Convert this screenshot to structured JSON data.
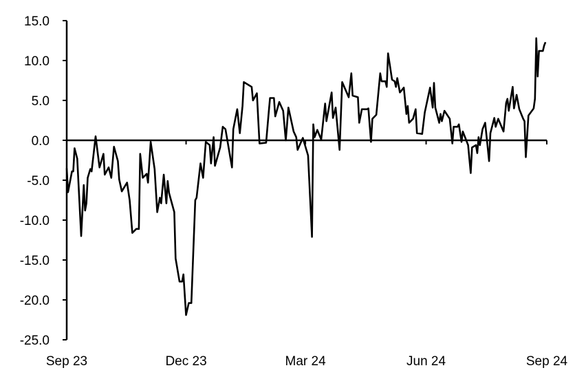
{
  "chart_data": {
    "type": "line",
    "title": "",
    "xlabel": "",
    "ylabel": "",
    "ylim": [
      -25,
      15
    ],
    "xlim": [
      "2023-09-01",
      "2024-09-01"
    ],
    "grid": false,
    "line_color": "#000000",
    "zero_line": true,
    "y_ticks": [
      15,
      10,
      5,
      0,
      -5,
      -10,
      -15,
      -20,
      -25
    ],
    "y_tick_labels": [
      "15.0",
      "10.0",
      "5.0",
      "0.0",
      "-5.0",
      "-10.0",
      "-15.0",
      "-20.0",
      "-25.0"
    ],
    "x_ticks": [
      "2023-09-01",
      "2023-12-01",
      "2024-03-01",
      "2024-06-01",
      "2024-09-01"
    ],
    "x_tick_labels": [
      "Sep 23",
      "Dec 23",
      "Mar 24",
      "Jun 24",
      "Sep 24"
    ],
    "series": [
      {
        "points": [
          [
            "2023-09-01",
            -3.5
          ],
          [
            "2023-09-02",
            -6.5
          ],
          [
            "2023-09-05",
            -3.9
          ],
          [
            "2023-09-06",
            -3.9
          ],
          [
            "2023-09-07",
            -1.0
          ],
          [
            "2023-09-09",
            -2.3
          ],
          [
            "2023-09-12",
            -12.0
          ],
          [
            "2023-09-14",
            -5.6
          ],
          [
            "2023-09-15",
            -8.8
          ],
          [
            "2023-09-16",
            -7.9
          ],
          [
            "2023-09-17",
            -4.7
          ],
          [
            "2023-09-19",
            -3.6
          ],
          [
            "2023-09-20",
            -3.9
          ],
          [
            "2023-09-23",
            0.5
          ],
          [
            "2023-09-26",
            -3.4
          ],
          [
            "2023-09-29",
            -1.7
          ],
          [
            "2023-09-30",
            -4.3
          ],
          [
            "2023-10-03",
            -3.4
          ],
          [
            "2023-10-05",
            -4.7
          ],
          [
            "2023-10-07",
            -0.8
          ],
          [
            "2023-10-10",
            -2.6
          ],
          [
            "2023-10-11",
            -4.9
          ],
          [
            "2023-10-13",
            -6.4
          ],
          [
            "2023-10-17",
            -5.3
          ],
          [
            "2023-10-19",
            -7.5
          ],
          [
            "2023-10-21",
            -11.6
          ],
          [
            "2023-10-24",
            -11.1
          ],
          [
            "2023-10-26",
            -11.1
          ],
          [
            "2023-10-27",
            -1.7
          ],
          [
            "2023-10-29",
            -4.7
          ],
          [
            "2023-11-01",
            -4.2
          ],
          [
            "2023-11-02",
            -5.3
          ],
          [
            "2023-11-04",
            -0.2
          ],
          [
            "2023-11-07",
            -3.6
          ],
          [
            "2023-11-09",
            -9.0
          ],
          [
            "2023-11-11",
            -7.2
          ],
          [
            "2023-11-12",
            -7.9
          ],
          [
            "2023-11-14",
            -4.3
          ],
          [
            "2023-11-16",
            -7.9
          ],
          [
            "2023-11-17",
            -5.1
          ],
          [
            "2023-11-18",
            -6.6
          ],
          [
            "2023-11-22",
            -9.0
          ],
          [
            "2023-11-23",
            -14.8
          ],
          [
            "2023-11-26",
            -17.7
          ],
          [
            "2023-11-28",
            -17.7
          ],
          [
            "2023-11-29",
            -16.8
          ],
          [
            "2023-12-01",
            -21.9
          ],
          [
            "2023-12-03",
            -20.4
          ],
          [
            "2023-12-05",
            -20.4
          ],
          [
            "2023-12-08",
            -7.5
          ],
          [
            "2023-12-09",
            -7.2
          ],
          [
            "2023-12-12",
            -2.9
          ],
          [
            "2023-12-14",
            -4.7
          ],
          [
            "2023-12-16",
            -0.2
          ],
          [
            "2023-12-19",
            -0.6
          ],
          [
            "2023-12-20",
            -2.9
          ],
          [
            "2023-12-22",
            0.4
          ],
          [
            "2023-12-23",
            -3.2
          ],
          [
            "2023-12-27",
            -0.9
          ],
          [
            "2023-12-29",
            1.7
          ],
          [
            "2023-12-31",
            1.4
          ],
          [
            "2024-01-05",
            -3.4
          ],
          [
            "2024-01-06",
            1.4
          ],
          [
            "2024-01-09",
            3.9
          ],
          [
            "2024-01-11",
            0.9
          ],
          [
            "2024-01-13",
            4.3
          ],
          [
            "2024-01-14",
            7.3
          ],
          [
            "2024-01-18",
            6.9
          ],
          [
            "2024-01-20",
            6.7
          ],
          [
            "2024-01-21",
            5.0
          ],
          [
            "2024-01-24",
            5.9
          ],
          [
            "2024-01-25",
            2.7
          ],
          [
            "2024-01-26",
            -0.4
          ],
          [
            "2024-01-31",
            -0.3
          ],
          [
            "2024-02-02",
            3.5
          ],
          [
            "2024-02-03",
            5.3
          ],
          [
            "2024-02-06",
            5.3
          ],
          [
            "2024-02-07",
            3.0
          ],
          [
            "2024-02-10",
            4.8
          ],
          [
            "2024-02-13",
            3.7
          ],
          [
            "2024-02-15",
            0.0
          ],
          [
            "2024-02-17",
            4.1
          ],
          [
            "2024-02-21",
            1.1
          ],
          [
            "2024-02-23",
            0.4
          ],
          [
            "2024-02-24",
            -1.2
          ],
          [
            "2024-02-28",
            0.3
          ],
          [
            "2024-03-03",
            -1.9
          ],
          [
            "2024-03-06",
            -12.1
          ],
          [
            "2024-03-07",
            2.0
          ],
          [
            "2024-03-08",
            0.4
          ],
          [
            "2024-03-10",
            1.3
          ],
          [
            "2024-03-13",
            0.1
          ],
          [
            "2024-03-16",
            4.6
          ],
          [
            "2024-03-17",
            2.4
          ],
          [
            "2024-03-21",
            6.0
          ],
          [
            "2024-03-22",
            2.8
          ],
          [
            "2024-03-24",
            4.1
          ],
          [
            "2024-03-27",
            -1.2
          ],
          [
            "2024-03-29",
            7.3
          ],
          [
            "2024-04-03",
            5.4
          ],
          [
            "2024-04-05",
            8.4
          ],
          [
            "2024-04-06",
            5.6
          ],
          [
            "2024-04-10",
            5.4
          ],
          [
            "2024-04-11",
            2.2
          ],
          [
            "2024-04-13",
            3.9
          ],
          [
            "2024-04-17",
            3.9
          ],
          [
            "2024-04-18",
            4.0
          ],
          [
            "2024-04-20",
            -0.2
          ],
          [
            "2024-04-21",
            2.7
          ],
          [
            "2024-04-24",
            3.2
          ],
          [
            "2024-04-27",
            8.4
          ],
          [
            "2024-04-28",
            7.4
          ],
          [
            "2024-05-01",
            7.4
          ],
          [
            "2024-05-02",
            6.7
          ],
          [
            "2024-05-03",
            10.9
          ],
          [
            "2024-05-06",
            7.6
          ],
          [
            "2024-05-08",
            7.4
          ],
          [
            "2024-05-09",
            6.7
          ],
          [
            "2024-05-10",
            7.8
          ],
          [
            "2024-05-12",
            6.0
          ],
          [
            "2024-05-15",
            6.6
          ],
          [
            "2024-05-17",
            3.3
          ],
          [
            "2024-05-18",
            4.3
          ],
          [
            "2024-05-19",
            2.2
          ],
          [
            "2024-05-22",
            2.7
          ],
          [
            "2024-05-24",
            3.9
          ],
          [
            "2024-05-25",
            0.9
          ],
          [
            "2024-05-29",
            0.8
          ],
          [
            "2024-05-31",
            3.5
          ],
          [
            "2024-06-04",
            6.6
          ],
          [
            "2024-06-06",
            4.1
          ],
          [
            "2024-06-07",
            7.2
          ],
          [
            "2024-06-08",
            4.1
          ],
          [
            "2024-06-11",
            2.2
          ],
          [
            "2024-06-12",
            3.3
          ],
          [
            "2024-06-13",
            2.4
          ],
          [
            "2024-06-15",
            3.7
          ],
          [
            "2024-06-19",
            2.7
          ],
          [
            "2024-06-21",
            -0.4
          ],
          [
            "2024-06-22",
            1.7
          ],
          [
            "2024-06-25",
            1.7
          ],
          [
            "2024-06-26",
            2.0
          ],
          [
            "2024-06-28",
            -0.2
          ],
          [
            "2024-06-29",
            1.1
          ],
          [
            "2024-07-03",
            -0.6
          ],
          [
            "2024-07-05",
            -4.1
          ],
          [
            "2024-07-06",
            -0.9
          ],
          [
            "2024-07-09",
            -0.6
          ],
          [
            "2024-07-10",
            -1.6
          ],
          [
            "2024-07-11",
            0.4
          ],
          [
            "2024-07-12",
            -0.6
          ],
          [
            "2024-07-14",
            1.4
          ],
          [
            "2024-07-16",
            2.2
          ],
          [
            "2024-07-19",
            -2.6
          ],
          [
            "2024-07-20",
            0.9
          ],
          [
            "2024-07-23",
            2.8
          ],
          [
            "2024-07-24",
            1.7
          ],
          [
            "2024-07-26",
            2.7
          ],
          [
            "2024-07-30",
            1.1
          ],
          [
            "2024-08-01",
            4.7
          ],
          [
            "2024-08-02",
            5.2
          ],
          [
            "2024-08-03",
            3.7
          ],
          [
            "2024-08-06",
            6.7
          ],
          [
            "2024-08-07",
            4.0
          ],
          [
            "2024-08-09",
            5.7
          ],
          [
            "2024-08-11",
            3.9
          ],
          [
            "2024-08-14",
            2.7
          ],
          [
            "2024-08-15",
            2.4
          ],
          [
            "2024-08-16",
            -2.1
          ],
          [
            "2024-08-18",
            3.1
          ],
          [
            "2024-08-22",
            4.0
          ],
          [
            "2024-08-23",
            5.2
          ],
          [
            "2024-08-24",
            12.8
          ],
          [
            "2024-08-25",
            8.0
          ],
          [
            "2024-08-26",
            11.2
          ],
          [
            "2024-08-29",
            11.2
          ],
          [
            "2024-08-30",
            11.9
          ],
          [
            "2024-08-31",
            12.3
          ]
        ]
      }
    ]
  }
}
